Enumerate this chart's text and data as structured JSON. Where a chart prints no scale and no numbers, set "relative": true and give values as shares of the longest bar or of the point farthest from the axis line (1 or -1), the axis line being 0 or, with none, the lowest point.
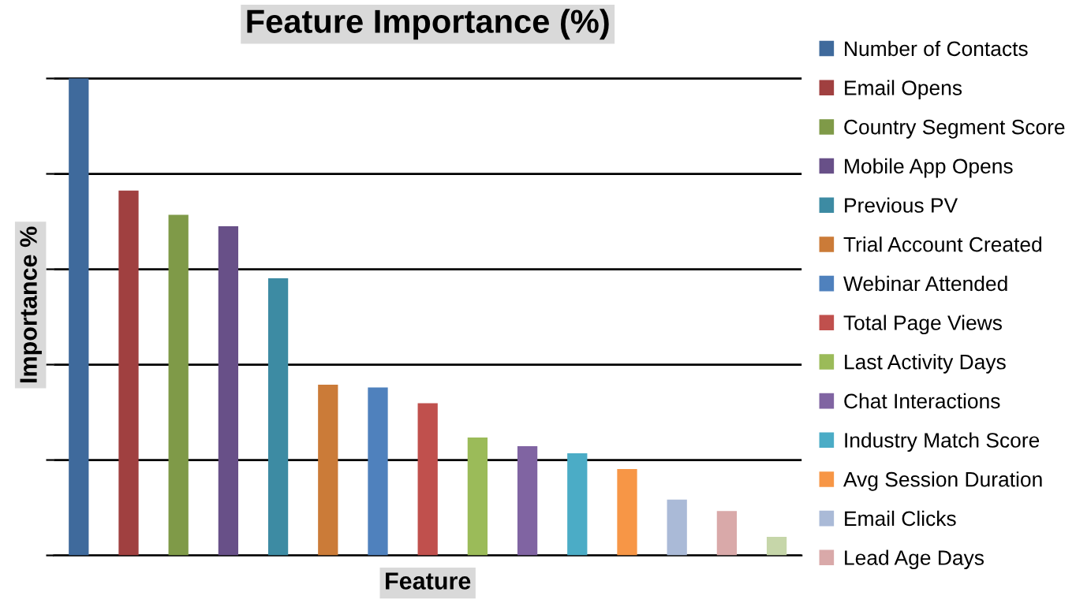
{
  "chart_data": {
    "type": "bar",
    "title": "Feature Importance (%)",
    "xlabel": "Feature",
    "ylabel": "Importance %",
    "relative": true,
    "stacked": true,
    "grid": "y",
    "legend": "right",
    "categories": [
      null,
      null,
      null,
      null,
      null,
      null,
      null,
      null,
      null,
      null,
      null,
      null,
      null,
      null,
      null
    ],
    "series": [
      {
        "name": "Number of Contacts",
        "color": "#3f6a9c",
        "values": [
          1,
          null,
          null,
          null,
          null,
          null,
          null,
          null,
          null,
          null,
          null,
          null,
          null,
          null,
          null
        ]
      },
      {
        "name": "Email Opens",
        "color": "#a04040",
        "values": [
          null,
          0.765,
          null,
          null,
          null,
          null,
          null,
          null,
          null,
          null,
          null,
          null,
          null,
          null,
          null
        ]
      },
      {
        "name": "Country Segment Score",
        "color": "#7f9a48",
        "values": [
          null,
          null,
          0.714,
          null,
          null,
          null,
          null,
          null,
          null,
          null,
          null,
          null,
          null,
          null,
          null
        ]
      },
      {
        "name": "Mobile App Opens",
        "color": "#685088",
        "values": [
          null,
          null,
          null,
          0.69,
          null,
          null,
          null,
          null,
          null,
          null,
          null,
          null,
          null,
          null,
          null
        ]
      },
      {
        "name": "Previous PV",
        "color": "#3d8ba3",
        "values": [
          null,
          null,
          null,
          null,
          0.581,
          null,
          null,
          null,
          null,
          null,
          null,
          null,
          null,
          null,
          null
        ]
      },
      {
        "name": "Trial Account Created",
        "color": "#cb7b38",
        "values": [
          null,
          null,
          null,
          null,
          null,
          0.358,
          null,
          null,
          null,
          null,
          null,
          null,
          null,
          null,
          null
        ]
      },
      {
        "name": "Webinar Attended",
        "color": "#4f81bd",
        "values": [
          null,
          null,
          null,
          null,
          null,
          null,
          0.352,
          null,
          null,
          null,
          null,
          null,
          null,
          null,
          null
        ]
      },
      {
        "name": "Total Page Views",
        "color": "#c0504d",
        "values": [
          null,
          null,
          null,
          null,
          null,
          null,
          null,
          0.319,
          null,
          null,
          null,
          null,
          null,
          null,
          null
        ]
      },
      {
        "name": "Last Activity Days",
        "color": "#9bbb59",
        "values": [
          null,
          null,
          null,
          null,
          null,
          null,
          null,
          null,
          0.247,
          null,
          null,
          null,
          null,
          null,
          null
        ]
      },
      {
        "name": "Chat Interactions",
        "color": "#8064a2",
        "values": [
          null,
          null,
          null,
          null,
          null,
          null,
          null,
          null,
          null,
          0.229,
          null,
          null,
          null,
          null,
          null
        ]
      },
      {
        "name": "Industry Match Score",
        "color": "#4bacc6",
        "values": [
          null,
          null,
          null,
          null,
          null,
          null,
          null,
          null,
          null,
          null,
          0.214,
          null,
          null,
          null,
          null
        ]
      },
      {
        "name": "Avg Session Duration",
        "color": "#f79646",
        "values": [
          null,
          null,
          null,
          null,
          null,
          null,
          null,
          null,
          null,
          null,
          null,
          0.181,
          null,
          null,
          null
        ]
      },
      {
        "name": "Email Clicks",
        "color": "#aabad7",
        "values": [
          null,
          null,
          null,
          null,
          null,
          null,
          null,
          null,
          null,
          null,
          null,
          null,
          0.117,
          null,
          null
        ]
      },
      {
        "name": "Lead Age Days",
        "color": "#d9a9a9",
        "values": [
          null,
          null,
          null,
          null,
          null,
          null,
          null,
          null,
          null,
          null,
          null,
          null,
          null,
          0.093,
          null
        ]
      },
      {
        "color": "#c6d6a9",
        "values": [
          null,
          null,
          null,
          null,
          null,
          null,
          null,
          null,
          null,
          null,
          null,
          null,
          null,
          null,
          0.039
        ]
      }
    ]
  }
}
